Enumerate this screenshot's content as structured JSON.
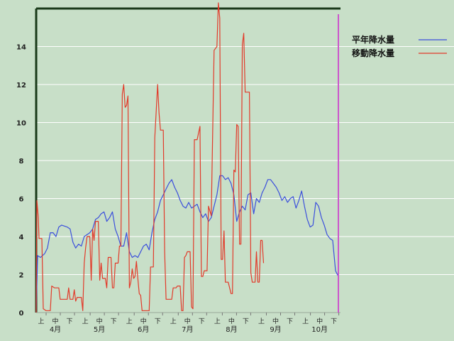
{
  "chart_data": {
    "type": "line",
    "title": "",
    "xlabel": "",
    "ylabel": "",
    "ylim": [
      0,
      16
    ],
    "y_ticks": [
      0,
      2,
      4,
      6,
      8,
      10,
      12,
      14
    ],
    "grid": "horizontal",
    "legend_position": "top-right",
    "x_groups": [
      {
        "month": "4月",
        "phases": [
          "上",
          "中",
          "下"
        ]
      },
      {
        "month": "5月",
        "phases": [
          "上",
          "中",
          "下"
        ]
      },
      {
        "month": "6月",
        "phases": [
          "上",
          "中",
          "下"
        ]
      },
      {
        "month": "7月",
        "phases": [
          "上",
          "中",
          "下"
        ]
      },
      {
        "month": "8月",
        "phases": [
          "上",
          "中",
          "下"
        ]
      },
      {
        "month": "9月",
        "phases": [
          "上",
          "中",
          "下"
        ]
      },
      {
        "month": "10月",
        "phases": [
          "上",
          "中",
          "下"
        ]
      }
    ],
    "x_range_days": [
      0,
      214
    ],
    "series": [
      {
        "name": "平年降水量",
        "color": "#3b4fdc",
        "points": [
          [
            0,
            0
          ],
          [
            1,
            3.0
          ],
          [
            3,
            2.9
          ],
          [
            6,
            3.1
          ],
          [
            8,
            3.4
          ],
          [
            10,
            4.2
          ],
          [
            12,
            4.2
          ],
          [
            14,
            4.0
          ],
          [
            16,
            4.5
          ],
          [
            18,
            4.6
          ],
          [
            22,
            4.5
          ],
          [
            24,
            4.4
          ],
          [
            26,
            3.7
          ],
          [
            28,
            3.4
          ],
          [
            30,
            3.6
          ],
          [
            32,
            3.5
          ],
          [
            34,
            4.0
          ],
          [
            36,
            4.1
          ],
          [
            38,
            4.2
          ],
          [
            40,
            4.4
          ],
          [
            42,
            4.9
          ],
          [
            44,
            5.0
          ],
          [
            46,
            5.2
          ],
          [
            48,
            5.3
          ],
          [
            50,
            4.8
          ],
          [
            52,
            5.0
          ],
          [
            54,
            5.3
          ],
          [
            56,
            4.4
          ],
          [
            58,
            4.0
          ],
          [
            60,
            3.5
          ],
          [
            62,
            3.5
          ],
          [
            64,
            4.2
          ],
          [
            66,
            3.2
          ],
          [
            68,
            2.9
          ],
          [
            70,
            3.0
          ],
          [
            72,
            2.9
          ],
          [
            74,
            3.2
          ],
          [
            76,
            3.5
          ],
          [
            78,
            3.6
          ],
          [
            80,
            3.3
          ],
          [
            82,
            4.2
          ],
          [
            84,
            4.9
          ],
          [
            86,
            5.3
          ],
          [
            88,
            5.9
          ],
          [
            90,
            6.2
          ],
          [
            92,
            6.5
          ],
          [
            94,
            6.8
          ],
          [
            96,
            7.0
          ],
          [
            98,
            6.6
          ],
          [
            100,
            6.3
          ],
          [
            102,
            5.9
          ],
          [
            104,
            5.6
          ],
          [
            106,
            5.5
          ],
          [
            108,
            5.8
          ],
          [
            110,
            5.5
          ],
          [
            112,
            5.6
          ],
          [
            114,
            5.7
          ],
          [
            116,
            5.3
          ],
          [
            118,
            5.0
          ],
          [
            120,
            5.2
          ],
          [
            122,
            4.8
          ],
          [
            124,
            5.0
          ],
          [
            126,
            5.6
          ],
          [
            128,
            6.2
          ],
          [
            130,
            7.2
          ],
          [
            132,
            7.2
          ],
          [
            134,
            7.0
          ],
          [
            136,
            7.1
          ],
          [
            138,
            6.8
          ],
          [
            140,
            6.2
          ],
          [
            142,
            4.8
          ],
          [
            144,
            5.3
          ],
          [
            146,
            5.6
          ],
          [
            148,
            5.4
          ],
          [
            150,
            6.2
          ],
          [
            152,
            6.3
          ],
          [
            154,
            5.2
          ],
          [
            156,
            6.0
          ],
          [
            158,
            5.8
          ],
          [
            160,
            6.3
          ],
          [
            162,
            6.6
          ],
          [
            164,
            7.0
          ],
          [
            166,
            7.0
          ],
          [
            168,
            6.8
          ],
          [
            170,
            6.6
          ],
          [
            172,
            6.3
          ],
          [
            174,
            5.9
          ],
          [
            176,
            6.1
          ],
          [
            178,
            5.8
          ],
          [
            180,
            6.0
          ],
          [
            182,
            6.1
          ],
          [
            184,
            5.5
          ],
          [
            186,
            5.9
          ],
          [
            188,
            6.4
          ],
          [
            190,
            5.6
          ],
          [
            192,
            4.9
          ],
          [
            194,
            4.5
          ],
          [
            196,
            4.6
          ],
          [
            198,
            5.8
          ],
          [
            200,
            5.6
          ],
          [
            202,
            5.0
          ],
          [
            204,
            4.6
          ],
          [
            206,
            4.1
          ],
          [
            208,
            3.9
          ],
          [
            210,
            3.8
          ],
          [
            212,
            2.2
          ],
          [
            214,
            1.9
          ]
        ]
      },
      {
        "name": "移動降水量",
        "color": "#e23a2a",
        "points": [
          [
            0,
            0
          ],
          [
            0.5,
            5.9
          ],
          [
            1.5,
            5.0
          ],
          [
            2,
            3.9
          ],
          [
            4,
            3.9
          ],
          [
            5,
            0.2
          ],
          [
            7,
            0.1
          ],
          [
            9,
            0.1
          ],
          [
            10,
            0.1
          ],
          [
            11,
            1.4
          ],
          [
            13,
            1.3
          ],
          [
            16,
            1.3
          ],
          [
            17,
            0.7
          ],
          [
            22,
            0.7
          ],
          [
            23,
            1.3
          ],
          [
            24,
            0.7
          ],
          [
            26,
            0.7
          ],
          [
            27,
            1.2
          ],
          [
            28,
            0.6
          ],
          [
            29,
            0.8
          ],
          [
            30,
            0.8
          ],
          [
            32,
            0.8
          ],
          [
            33,
            0.1
          ],
          [
            34,
            2.6
          ],
          [
            35,
            3.4
          ],
          [
            36,
            4.0
          ],
          [
            38,
            4.0
          ],
          [
            39,
            1.7
          ],
          [
            40,
            4.4
          ],
          [
            41,
            3.8
          ],
          [
            42,
            4.8
          ],
          [
            44,
            4.8
          ],
          [
            45,
            1.7
          ],
          [
            46,
            2.6
          ],
          [
            47,
            1.8
          ],
          [
            49,
            1.8
          ],
          [
            50,
            1.3
          ],
          [
            51,
            2.9
          ],
          [
            53,
            2.9
          ],
          [
            54,
            1.3
          ],
          [
            55,
            1.3
          ],
          [
            56,
            2.6
          ],
          [
            58,
            2.6
          ],
          [
            59,
            3.5
          ],
          [
            60,
            3.5
          ],
          [
            61,
            11.5
          ],
          [
            62,
            12.0
          ],
          [
            63,
            10.8
          ],
          [
            64,
            10.9
          ],
          [
            65,
            11.4
          ],
          [
            66,
            1.3
          ],
          [
            67,
            1.6
          ],
          [
            68,
            2.3
          ],
          [
            69,
            1.8
          ],
          [
            70,
            1.9
          ],
          [
            71,
            2.7
          ],
          [
            72,
            1.8
          ],
          [
            73,
            1.0
          ],
          [
            74,
            0.9
          ],
          [
            75,
            0.1
          ],
          [
            80,
            0.1
          ],
          [
            81,
            2.4
          ],
          [
            83,
            2.4
          ],
          [
            84,
            9.2
          ],
          [
            86,
            12.0
          ],
          [
            87,
            10.5
          ],
          [
            88,
            9.6
          ],
          [
            90,
            9.6
          ],
          [
            91,
            3.2
          ],
          [
            92,
            0.7
          ],
          [
            96,
            0.7
          ],
          [
            97,
            1.3
          ],
          [
            99,
            1.3
          ],
          [
            100,
            1.4
          ],
          [
            102,
            1.4
          ],
          [
            103,
            0.1
          ],
          [
            104,
            0.1
          ],
          [
            105,
            2.9
          ],
          [
            106,
            3.0
          ],
          [
            107,
            3.2
          ],
          [
            109,
            3.2
          ],
          [
            110,
            0.3
          ],
          [
            111,
            0.2
          ],
          [
            112,
            9.1
          ],
          [
            114,
            9.1
          ],
          [
            116,
            9.8
          ],
          [
            117,
            1.9
          ],
          [
            118,
            1.9
          ],
          [
            119,
            2.2
          ],
          [
            121,
            2.2
          ],
          [
            122,
            5.6
          ],
          [
            124,
            5.1
          ],
          [
            126,
            13.8
          ],
          [
            128,
            14.0
          ],
          [
            129,
            16.3
          ],
          [
            130,
            15.5
          ],
          [
            131,
            2.8
          ],
          [
            132,
            2.8
          ],
          [
            133,
            4.3
          ],
          [
            134,
            1.6
          ],
          [
            136,
            1.6
          ],
          [
            138,
            1.0
          ],
          [
            139,
            1.0
          ],
          [
            140,
            7.5
          ],
          [
            141,
            7.4
          ],
          [
            142,
            9.9
          ],
          [
            143,
            9.8
          ],
          [
            144,
            3.6
          ],
          [
            145,
            3.6
          ],
          [
            146,
            14.1
          ],
          [
            147,
            14.7
          ],
          [
            148,
            11.6
          ],
          [
            151,
            11.6
          ],
          [
            152,
            2.1
          ],
          [
            153,
            1.6
          ],
          [
            155,
            1.6
          ],
          [
            156,
            3.2
          ],
          [
            157,
            1.6
          ],
          [
            158,
            1.6
          ],
          [
            159,
            3.8
          ],
          [
            160,
            3.8
          ],
          [
            161,
            2.6
          ]
        ]
      }
    ]
  }
}
